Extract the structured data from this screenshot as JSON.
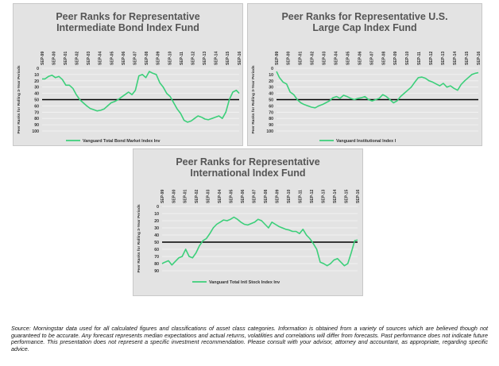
{
  "charts": [
    {
      "title_line1": "Peer Ranks for Representative",
      "title_line2": "Intermediate Bond Index Fund",
      "ylabel": "Peer Ranks for Rolling 3-Year Periods",
      "legend": "Vanguard Total Bond Market Index Inv",
      "line_color": "#3ccf7a",
      "reference_line": 50
    },
    {
      "title_line1": "Peer Ranks for Representative U.S.",
      "title_line2": "Large Cap Index Fund",
      "ylabel": "Peer Ranks for Rolling 3-Year Periods",
      "legend": "Vanguard Institutional Index I",
      "line_color": "#3ccf7a",
      "reference_line": 50
    },
    {
      "title_line1": "Peer Ranks for Representative",
      "title_line2": "International Index Fund",
      "ylabel": "Peer Ranks for Rolling 3-Year Periods",
      "legend": "Vanguard Total Intl Stock Index Inv",
      "line_color": "#3ccf7a",
      "reference_line": 50
    }
  ],
  "chart_data": [
    {
      "type": "line",
      "title": "Peer Ranks for Representative Intermediate Bond Index Fund",
      "ylabel": "Peer Ranks for Rolling 3-Year Periods",
      "ylim": [
        0,
        100
      ],
      "y_inverted": true,
      "yticks": [
        0,
        10,
        20,
        30,
        40,
        50,
        60,
        70,
        80,
        90,
        100
      ],
      "x_tick_labels": [
        "SEP-99",
        "SEP-00",
        "SEP-01",
        "SEP-02",
        "SEP-03",
        "SEP-04",
        "SEP-05",
        "SEP-06",
        "SEP-07",
        "SEP-08",
        "SEP-09",
        "SEP-10",
        "SEP-11",
        "SEP-12",
        "SEP-13",
        "SEP-14",
        "SEP-15",
        "SEP-16"
      ],
      "x_range": [
        1999.75,
        2016.75
      ],
      "series": [
        {
          "name": "Vanguard Total Bond Market Index Inv",
          "x": [
            1999.75,
            2000.0,
            2000.3,
            2000.6,
            2000.9,
            2001.2,
            2001.5,
            2001.8,
            2002.1,
            2002.4,
            2002.7,
            2003.0,
            2003.3,
            2003.6,
            2003.9,
            2004.2,
            2004.5,
            2004.8,
            2005.1,
            2005.4,
            2005.7,
            2006.0,
            2006.3,
            2006.6,
            2006.9,
            2007.2,
            2007.5,
            2007.8,
            2008.1,
            2008.4,
            2008.7,
            2009.0,
            2009.3,
            2009.6,
            2009.9,
            2010.2,
            2010.5,
            2010.8,
            2011.1,
            2011.4,
            2011.7,
            2012.0,
            2012.3,
            2012.6,
            2012.9,
            2013.2,
            2013.5,
            2013.8,
            2014.1,
            2014.4,
            2014.7,
            2015.0,
            2015.3,
            2015.6,
            2015.9,
            2016.2,
            2016.5,
            2016.75
          ],
          "values": [
            17,
            17,
            13,
            11,
            15,
            13,
            18,
            27,
            27,
            32,
            42,
            50,
            55,
            60,
            64,
            66,
            68,
            67,
            65,
            60,
            55,
            53,
            50,
            46,
            42,
            38,
            42,
            35,
            12,
            10,
            15,
            5,
            8,
            10,
            23,
            30,
            40,
            45,
            55,
            65,
            72,
            83,
            86,
            84,
            80,
            76,
            78,
            81,
            82,
            80,
            78,
            76,
            80,
            70,
            50,
            38,
            35,
            40
          ]
        }
      ],
      "reference_line": 50,
      "legend": "Vanguard Total Bond Market Index Inv"
    },
    {
      "type": "line",
      "title": "Peer Ranks for Representative U.S. Large Cap Index Fund",
      "ylabel": "Peer Ranks for Rolling 3-Year Periods",
      "ylim": [
        0,
        100
      ],
      "y_inverted": true,
      "yticks": [
        0,
        10,
        20,
        30,
        40,
        50,
        60,
        70,
        80,
        90,
        100
      ],
      "x_tick_labels": [
        "SEP-99",
        "SEP-00",
        "SEP-01",
        "SEP-02",
        "SEP-03",
        "SEP-04",
        "SEP-05",
        "SEP-06",
        "SEP-07",
        "SEP-08",
        "SEP-09",
        "SEP-10",
        "SEP-11",
        "SEP-12",
        "SEP-13",
        "SEP-14",
        "SEP-15",
        "SEP-16"
      ],
      "x_range": [
        1999.75,
        2016.75
      ],
      "series": [
        {
          "name": "Vanguard Institutional Index I",
          "x": [
            1999.75,
            2000.0,
            2000.3,
            2000.6,
            2000.9,
            2001.2,
            2001.5,
            2001.8,
            2002.1,
            2002.4,
            2002.7,
            2003.0,
            2003.3,
            2003.6,
            2003.9,
            2004.2,
            2004.5,
            2004.8,
            2005.1,
            2005.4,
            2005.7,
            2006.0,
            2006.3,
            2006.6,
            2006.9,
            2007.2,
            2007.5,
            2007.8,
            2008.1,
            2008.4,
            2008.7,
            2009.0,
            2009.3,
            2009.6,
            2009.9,
            2010.2,
            2010.5,
            2010.8,
            2011.1,
            2011.4,
            2011.7,
            2012.0,
            2012.3,
            2012.6,
            2012.9,
            2013.2,
            2013.5,
            2013.8,
            2014.1,
            2014.4,
            2014.7,
            2015.0,
            2015.3,
            2015.6,
            2015.9,
            2016.2,
            2016.5,
            2016.75
          ],
          "values": [
            5,
            15,
            22,
            25,
            38,
            42,
            50,
            55,
            58,
            60,
            62,
            63,
            60,
            58,
            55,
            52,
            47,
            45,
            48,
            43,
            45,
            48,
            50,
            48,
            47,
            45,
            50,
            52,
            50,
            48,
            42,
            45,
            50,
            55,
            52,
            45,
            40,
            35,
            30,
            22,
            15,
            14,
            16,
            20,
            22,
            25,
            28,
            24,
            30,
            28,
            32,
            35,
            26,
            20,
            15,
            10,
            8,
            7
          ]
        }
      ],
      "reference_line": 50,
      "legend": "Vanguard Institutional Index I"
    },
    {
      "type": "line",
      "title": "Peer Ranks for Representative International Index Fund",
      "ylabel": "Peer Ranks for Rolling 3-Year Periods",
      "ylim": [
        0,
        90
      ],
      "y_inverted": true,
      "yticks": [
        0,
        10,
        20,
        30,
        40,
        50,
        60,
        70,
        80,
        90
      ],
      "x_tick_labels": [
        "SEP-99",
        "SEP-00",
        "SEP-01",
        "SEP-02",
        "SEP-03",
        "SEP-04",
        "SEP-05",
        "SEP-06",
        "SEP-07",
        "SEP-08",
        "SEP-09",
        "SEP-10",
        "SEP-11",
        "SEP-12",
        "SEP-13",
        "SEP-14",
        "SEP-15",
        "SEP-16"
      ],
      "x_range": [
        1999.75,
        2016.75
      ],
      "series": [
        {
          "name": "Vanguard Total Intl Stock Index Inv",
          "x": [
            1999.75,
            2000.0,
            2000.3,
            2000.6,
            2000.9,
            2001.2,
            2001.5,
            2001.8,
            2002.1,
            2002.4,
            2002.7,
            2003.0,
            2003.3,
            2003.6,
            2003.9,
            2004.2,
            2004.5,
            2004.8,
            2005.1,
            2005.4,
            2005.7,
            2006.0,
            2006.3,
            2006.6,
            2006.9,
            2007.2,
            2007.5,
            2007.8,
            2008.1,
            2008.4,
            2008.7,
            2009.0,
            2009.3,
            2009.6,
            2009.9,
            2010.2,
            2010.5,
            2010.8,
            2011.1,
            2011.4,
            2011.7,
            2012.0,
            2012.3,
            2012.6,
            2012.9,
            2013.2,
            2013.5,
            2013.8,
            2014.1,
            2014.4,
            2014.7,
            2015.0,
            2015.3,
            2015.6,
            2015.9,
            2016.2,
            2016.5,
            2016.75
          ],
          "values": [
            80,
            78,
            76,
            82,
            77,
            72,
            70,
            60,
            70,
            72,
            65,
            55,
            48,
            45,
            38,
            30,
            25,
            22,
            19,
            20,
            18,
            15,
            18,
            22,
            25,
            26,
            24,
            22,
            18,
            20,
            25,
            30,
            22,
            25,
            28,
            30,
            32,
            33,
            35,
            35,
            38,
            32,
            40,
            45,
            52,
            60,
            78,
            80,
            83,
            80,
            75,
            73,
            78,
            83,
            80,
            65,
            48,
            47
          ]
        }
      ],
      "reference_line": 50,
      "legend": "Vanguard Total Intl Stock Index Inv"
    }
  ],
  "source_note": "Source: Morningstar data used for all calculated figures and classifications of asset class categories. Information is obtained from a variety of sources which are believed though not guaranteed to be accurate.  Any forecast represents median expectations and actual returns, volatilities and correlations will differ from forecasts.  Past performance does not indicate future performance. This presentation does not represent a specific investment recommendation.  Please consult with your advisor, attorney and accountant, as appropriate, regarding specific advice."
}
